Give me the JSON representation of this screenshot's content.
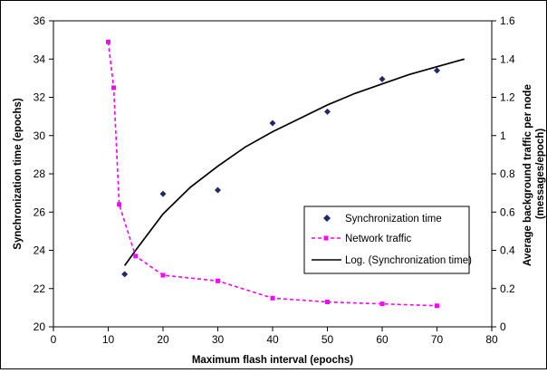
{
  "chart_data": {
    "type": "scatter",
    "title": "",
    "xlabel": "Maximum flash interval (epochs)",
    "ylabel_left": "Synchronization time (epochs)",
    "ylabel_right": "Average background traffic per node (messages/epoch)",
    "ylabel_right_lines": [
      "Average background traffic per node",
      "(messages/epoch)"
    ],
    "xlim": [
      0,
      80
    ],
    "ylim_left": [
      20,
      36
    ],
    "ylim_right": [
      0,
      1.6
    ],
    "xticks": [
      0,
      10,
      20,
      30,
      40,
      50,
      60,
      70,
      80
    ],
    "yticks_left": [
      20,
      22,
      24,
      26,
      28,
      30,
      32,
      34,
      36
    ],
    "yticks_right": [
      "0",
      "0.2",
      "0.4",
      "0.6",
      "0.8",
      "1",
      "1.2",
      "1.4",
      "1.6"
    ],
    "grid": false,
    "legend_position": "center-right",
    "series": [
      {
        "name": "Synchronization time",
        "axis": "left",
        "marker": "diamond",
        "color": "#1f2a6b",
        "x": [
          13,
          20,
          30,
          40,
          50,
          60,
          70
        ],
        "y": [
          22.75,
          26.95,
          27.15,
          30.65,
          31.25,
          32.95,
          33.4
        ]
      },
      {
        "name": "Network traffic",
        "axis": "right",
        "marker": "square",
        "line": "dashed",
        "color": "#ff00ff",
        "x": [
          10,
          11,
          12,
          15,
          20,
          30,
          40,
          50,
          60,
          70
        ],
        "y": [
          1.49,
          1.25,
          0.64,
          0.37,
          0.27,
          0.24,
          0.15,
          0.13,
          0.12,
          0.11
        ]
      },
      {
        "name": "Log. (Synchronization time)",
        "axis": "left",
        "type": "line",
        "fit": "logarithmic",
        "color": "#000000",
        "x": [
          13,
          15,
          20,
          25,
          30,
          35,
          40,
          45,
          50,
          55,
          60,
          65,
          70,
          75
        ],
        "y": [
          23.2,
          24.0,
          25.9,
          27.3,
          28.4,
          29.4,
          30.2,
          30.9,
          31.6,
          32.2,
          32.7,
          33.2,
          33.6,
          34.0
        ]
      }
    ]
  }
}
